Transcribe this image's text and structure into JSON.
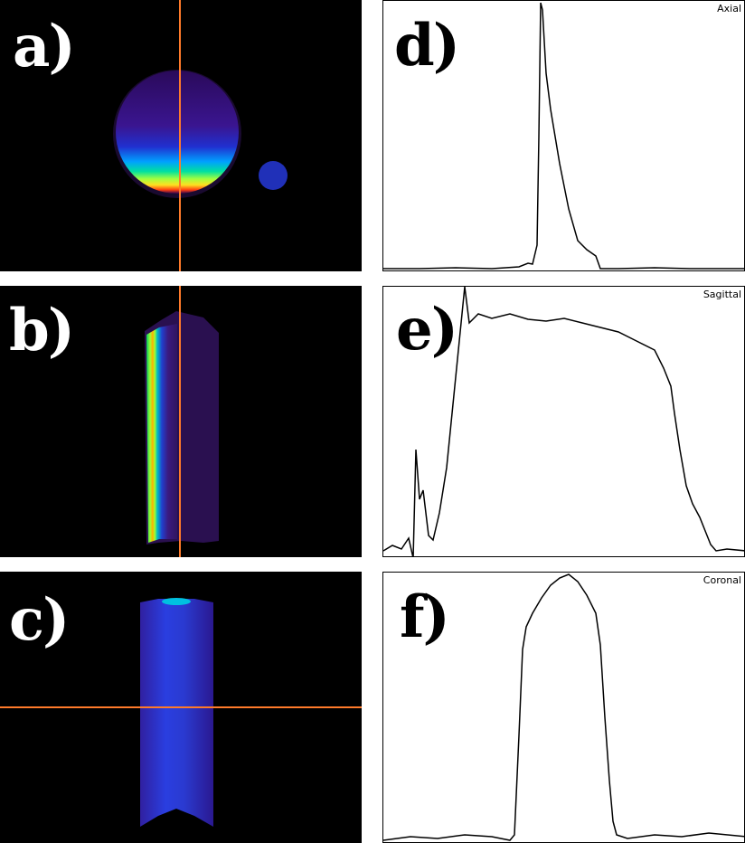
{
  "panels": {
    "a": {
      "label": "a)"
    },
    "b": {
      "label": "b)"
    },
    "c": {
      "label": "c)"
    },
    "d": {
      "label": "d)",
      "title": "Axial"
    },
    "e": {
      "label": "e)",
      "title": "Sagittal"
    },
    "f": {
      "label": "f)",
      "title": "Coronal"
    }
  },
  "colors": {
    "crosshair": "#ff7a2a",
    "profile_line": "#000000"
  }
}
